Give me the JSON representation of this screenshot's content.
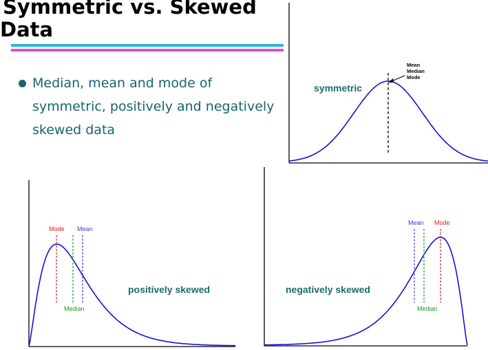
{
  "slide": {
    "title_line1": "Symmetric vs. Skewed",
    "title_line2": "Data",
    "bullet": "Median, mean and mode of symmetric, positively and negatively skewed data"
  },
  "colors": {
    "curve": "#1010d8",
    "mode": "#e02020",
    "median": "#1a9a1a",
    "mean": "#3a3ae0",
    "label": "#1c6b6e"
  },
  "figures": {
    "symmetric": {
      "label": "symmetric",
      "annotations": [
        "Mean",
        "Median",
        "Mode"
      ]
    },
    "positive": {
      "label": "positively skewed",
      "mode_label": "Mode",
      "mean_label": "Mean",
      "median_label": "Median"
    },
    "negative": {
      "label": "negatively skewed",
      "mean_label": "Mean",
      "mode_label": "Mode",
      "median_label": "Median"
    }
  }
}
